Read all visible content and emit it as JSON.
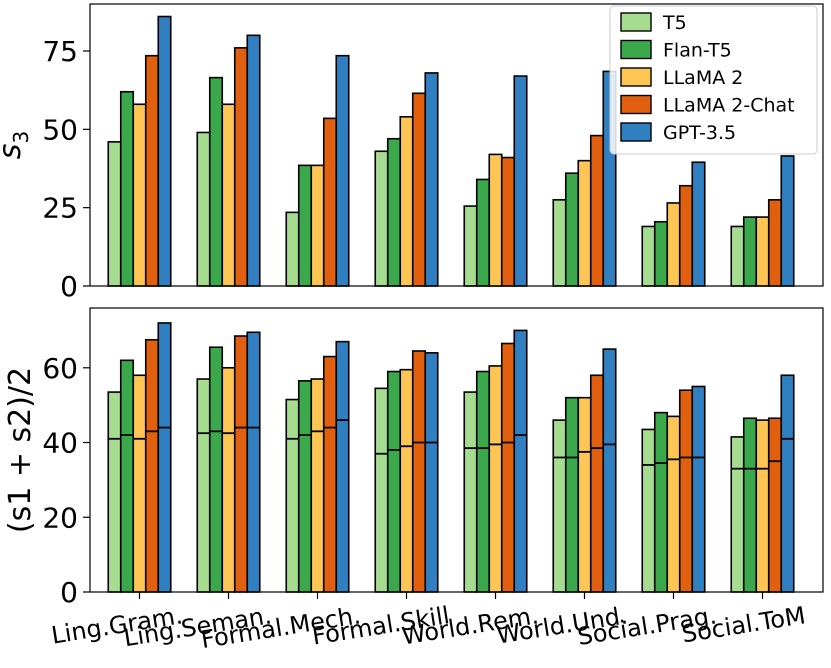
{
  "chart_data": [
    {
      "type": "bar",
      "ylabel_base": "s",
      "ylabel_sub": "3",
      "ylim": [
        0,
        90
      ],
      "yticks": [
        0,
        25,
        50,
        75
      ],
      "grid": false,
      "legend_position": "top-right",
      "categories": [
        "Ling.Gram.",
        "Ling.Seman.",
        "Formal.Mech.",
        "Formal.Skill",
        "World.Rem.",
        "World.Und.",
        "Social.Prag.",
        "Social.ToM"
      ],
      "series": [
        {
          "name": "T5",
          "color": "#a6dc8f",
          "values": [
            46,
            49,
            23.5,
            43,
            25.5,
            27.5,
            19,
            19
          ]
        },
        {
          "name": "Flan-T5",
          "color": "#3ca84c",
          "values": [
            62,
            66.5,
            38.5,
            47,
            34,
            36,
            20.5,
            22
          ]
        },
        {
          "name": "LLaMA 2",
          "color": "#fdc553",
          "values": [
            58,
            58,
            38.5,
            54,
            42,
            40,
            26.5,
            22
          ]
        },
        {
          "name": "LLaMA 2-Chat",
          "color": "#e0600f",
          "values": [
            73.5,
            76,
            53.5,
            61.5,
            41,
            48,
            32,
            27.5
          ]
        },
        {
          "name": "GPT-3.5",
          "color": "#2f7fc1",
          "values": [
            86,
            80,
            73.5,
            68,
            67,
            68.5,
            39.5,
            41.5
          ]
        }
      ]
    },
    {
      "type": "bar",
      "ylabel": "(s1 + s2)/2",
      "ylim": [
        0,
        76
      ],
      "yticks": [
        0,
        20,
        40,
        60
      ],
      "grid": false,
      "categories": [
        "Ling.Gram.",
        "Ling.Seman.",
        "Formal.Mech.",
        "Formal.Skill",
        "World.Rem.",
        "World.Und.",
        "Social.Prag.",
        "Social.ToM"
      ],
      "series": [
        {
          "name": "T5",
          "color": "#a6dc8f",
          "values": [
            53.5,
            57,
            51.5,
            54.5,
            53.5,
            46,
            43.5,
            41.5
          ],
          "inner_line": [
            41,
            42.5,
            41,
            37,
            38.5,
            36,
            34,
            33
          ]
        },
        {
          "name": "Flan-T5",
          "color": "#3ca84c",
          "values": [
            62,
            65.5,
            56.5,
            59,
            59,
            52,
            48,
            46.5
          ],
          "inner_line": [
            42,
            43,
            42,
            38,
            38.5,
            36,
            34.5,
            33
          ]
        },
        {
          "name": "LLaMA 2",
          "color": "#fdc553",
          "values": [
            58,
            60,
            57,
            59.5,
            60.5,
            52,
            47,
            46
          ],
          "inner_line": [
            41,
            42.5,
            43,
            39,
            39.5,
            37.5,
            35.5,
            33
          ]
        },
        {
          "name": "LLaMA 2-Chat",
          "color": "#e0600f",
          "values": [
            67.5,
            68.5,
            63,
            64.5,
            66.5,
            58,
            54,
            46.5
          ],
          "inner_line": [
            43,
            44,
            44,
            40,
            40,
            38.5,
            36,
            35
          ]
        },
        {
          "name": "GPT-3.5",
          "color": "#2f7fc1",
          "values": [
            72,
            69.5,
            67,
            64,
            70,
            65,
            55,
            58
          ],
          "inner_line": [
            44,
            44,
            46,
            40,
            42,
            39.5,
            36,
            41
          ]
        }
      ]
    }
  ]
}
